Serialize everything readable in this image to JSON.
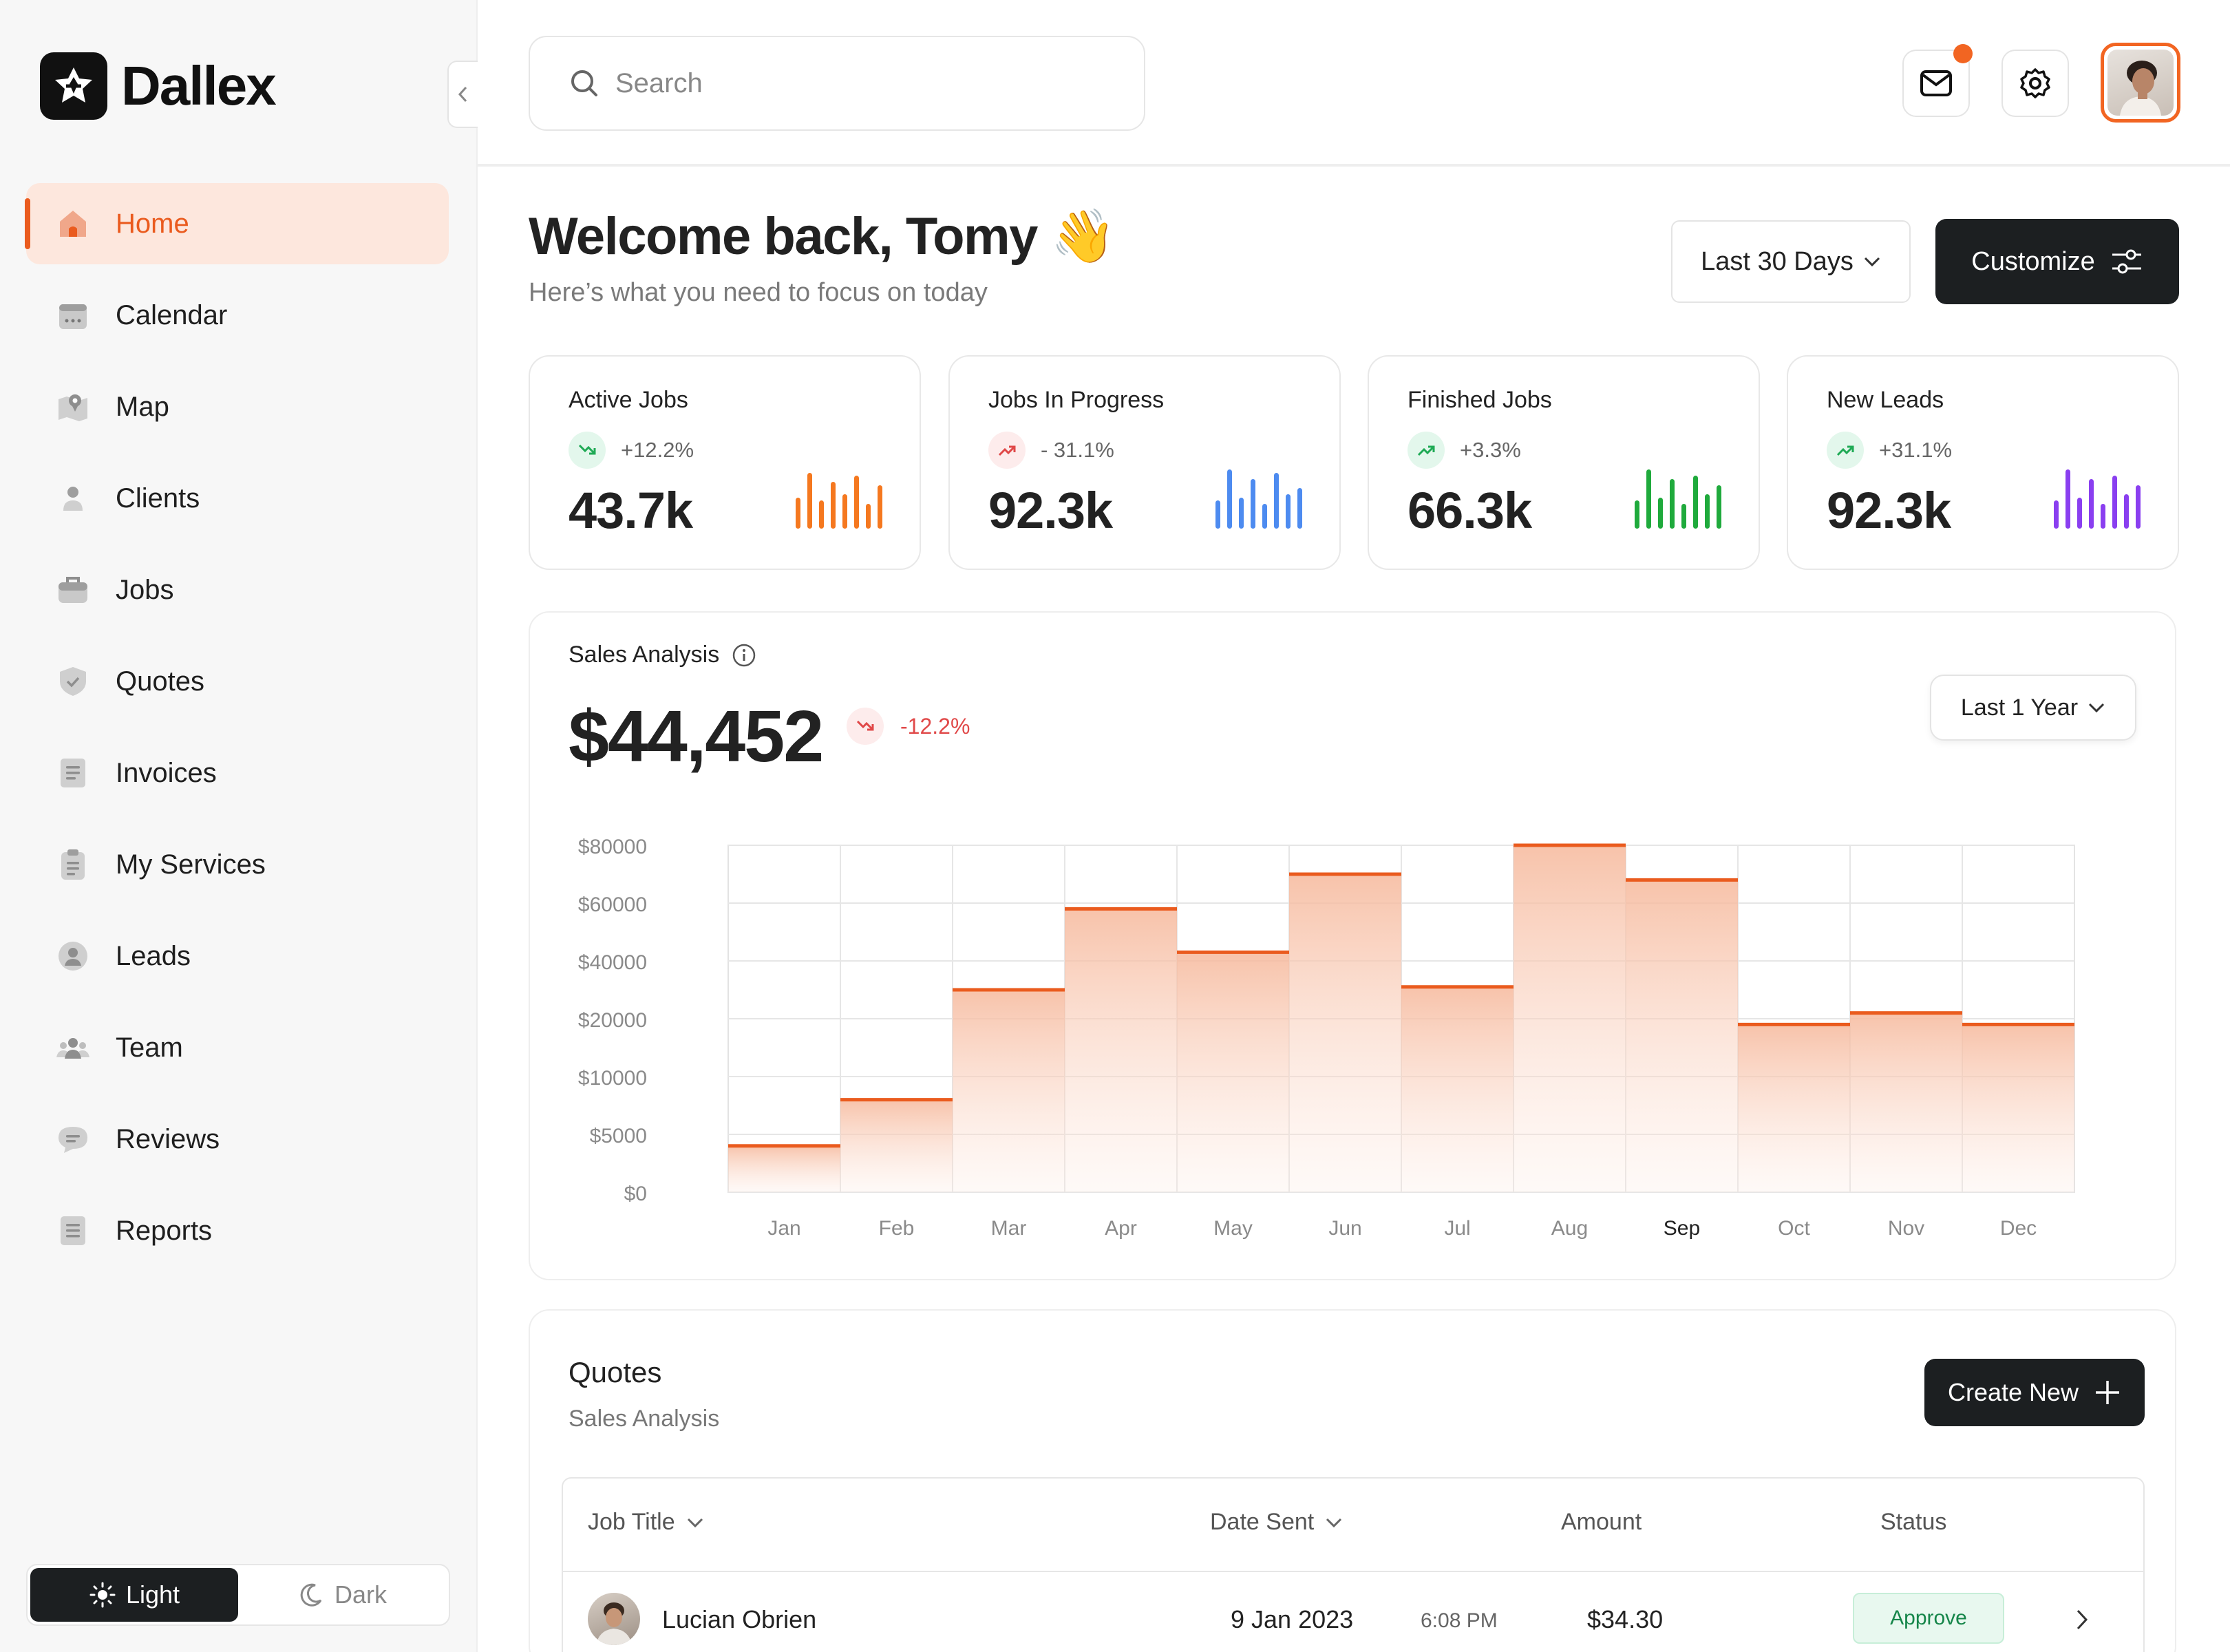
{
  "app": {
    "name": "Dallex"
  },
  "sidebar": {
    "items": [
      {
        "label": "Home",
        "icon": "home-icon",
        "active": true
      },
      {
        "label": "Calendar",
        "icon": "calendar-icon"
      },
      {
        "label": "Map",
        "icon": "map-icon"
      },
      {
        "label": "Clients",
        "icon": "user-icon"
      },
      {
        "label": "Jobs",
        "icon": "briefcase-icon"
      },
      {
        "label": "Quotes",
        "icon": "shield-icon"
      },
      {
        "label": "Invoices",
        "icon": "invoice-icon"
      },
      {
        "label": "My Services",
        "icon": "clipboard-icon"
      },
      {
        "label": "Leads",
        "icon": "lead-icon"
      },
      {
        "label": "Team",
        "icon": "team-icon"
      },
      {
        "label": "Reviews",
        "icon": "chat-icon"
      },
      {
        "label": "Reports",
        "icon": "report-icon"
      }
    ],
    "theme": {
      "light": "Light",
      "dark": "Dark",
      "selected": "Light"
    }
  },
  "topbar": {
    "search_placeholder": "Search"
  },
  "welcome": {
    "title": "Welcome back, Tomy 👋",
    "subtitle": "Here’s what you need to focus on today",
    "range": "Last 30 Days",
    "customize": "Customize"
  },
  "stats": [
    {
      "title": "Active Jobs",
      "change": "+12.2%",
      "value": "43.7k",
      "trend": "down",
      "color": "#f5781f",
      "bars": [
        0.5,
        0.9,
        0.45,
        0.75,
        0.55,
        0.85,
        0.4,
        0.7
      ]
    },
    {
      "title": "Jobs In Progress",
      "change": "- 31.1%",
      "value": "92.3k",
      "trend": "down-red",
      "color": "#4d8bf0",
      "bars": [
        0.45,
        0.95,
        0.5,
        0.8,
        0.4,
        0.9,
        0.55,
        0.65
      ]
    },
    {
      "title": "Finished Jobs",
      "change": "+3.3%",
      "value": "66.3k",
      "trend": "up",
      "color": "#1faa3c",
      "bars": [
        0.45,
        0.95,
        0.5,
        0.8,
        0.4,
        0.85,
        0.55,
        0.7
      ]
    },
    {
      "title": "New Leads",
      "change": "+31.1%",
      "value": "92.3k",
      "trend": "up",
      "color": "#8a3ff0",
      "bars": [
        0.45,
        0.95,
        0.5,
        0.8,
        0.4,
        0.85,
        0.55,
        0.7
      ]
    }
  ],
  "sales": {
    "title": "Sales Analysis",
    "value": "$44,452",
    "change": "-12.2%",
    "range": "Last 1 Year"
  },
  "chart_data": {
    "type": "area",
    "step": true,
    "categories": [
      "Jan",
      "Feb",
      "Mar",
      "Apr",
      "May",
      "Jun",
      "Jul",
      "Aug",
      "Sep",
      "Oct",
      "Nov",
      "Dec"
    ],
    "ytick_labels": [
      "$80000",
      "$60000",
      "$40000",
      "$20000",
      "$10000",
      "$5000",
      "$0"
    ],
    "values": [
      4000,
      8000,
      30000,
      58000,
      43000,
      70000,
      31000,
      90000,
      68000,
      19000,
      22000,
      19000
    ],
    "highlight_category": "Sep",
    "color": "#ea5b1e",
    "grid": true
  },
  "quotes": {
    "title": "Quotes",
    "subtitle": "Sales Analysis",
    "create": "Create New",
    "columns": [
      "Job Title",
      "Date Sent",
      "Amount",
      "Status"
    ],
    "rows": [
      {
        "name": "Lucian Obrien",
        "date": "9 Jan 2023",
        "time": "6:08 PM",
        "amount": "$34.30",
        "status": "Approve"
      }
    ]
  }
}
